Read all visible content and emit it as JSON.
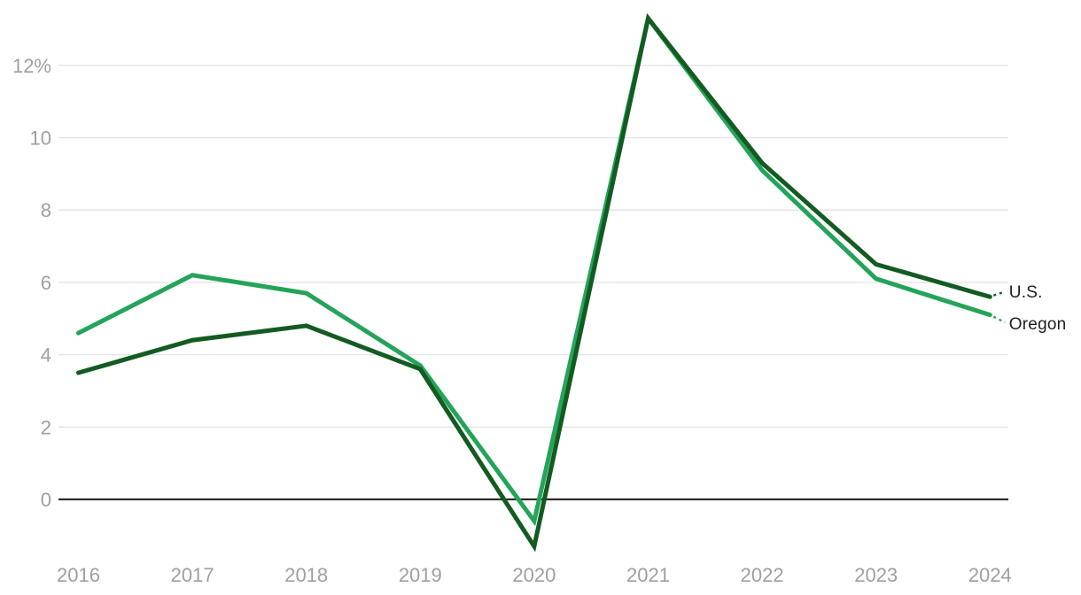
{
  "chart_data": {
    "type": "line",
    "title": "",
    "xlabel": "",
    "ylabel": "",
    "unit": "%",
    "categories": [
      "2016",
      "2017",
      "2018",
      "2019",
      "2020",
      "2021",
      "2022",
      "2023",
      "2024"
    ],
    "series": [
      {
        "name": "Oregon",
        "color": "#24a45a",
        "values": [
          4.6,
          6.2,
          5.7,
          3.7,
          -0.6,
          13.3,
          9.1,
          6.1,
          5.1
        ]
      },
      {
        "name": "U.S.",
        "color": "#135b21",
        "values": [
          3.5,
          4.4,
          4.8,
          3.6,
          -1.3,
          13.3,
          9.3,
          6.5,
          5.6
        ]
      }
    ],
    "yticks": [
      {
        "value": 12,
        "label": "12%"
      },
      {
        "value": 10,
        "label": "10"
      },
      {
        "value": 8,
        "label": "8"
      },
      {
        "value": 6,
        "label": "6"
      },
      {
        "value": 4,
        "label": "4"
      },
      {
        "value": 2,
        "label": "2"
      },
      {
        "value": 0,
        "label": "0"
      }
    ],
    "ylim": [
      -1.6,
      13.4
    ],
    "grid": "horizontal",
    "zero_line": true,
    "legend": "end-of-line-labels"
  },
  "colors": {
    "background": "#ffffff",
    "gridline": "#e3e3e3",
    "zero_line": "#2e2e2e",
    "tick_label": "#9f9f9f",
    "series_label": "#222222"
  }
}
